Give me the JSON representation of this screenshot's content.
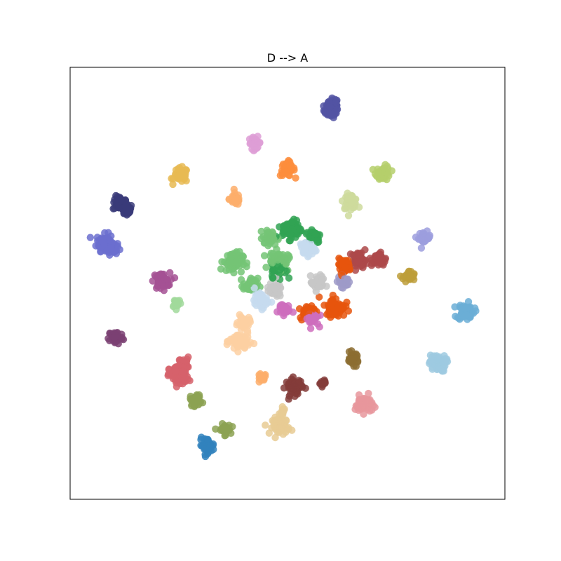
{
  "chart_data": {
    "type": "scatter",
    "title": "D --> A",
    "xlabel": "",
    "ylabel": "",
    "xlim": [
      -100,
      100
    ],
    "ylim": [
      -100,
      100
    ],
    "grid": false,
    "legend": "none",
    "ticks": false,
    "series": [
      {
        "color": "#5254a3",
        "points": [
          [
            21,
            83,
            2.5
          ],
          [
            20,
            80,
            3
          ]
        ]
      },
      {
        "color": "#393b79",
        "points": [
          [
            -77,
            37,
            3
          ],
          [
            -74,
            34,
            2.5
          ]
        ]
      },
      {
        "color": "#6b6ecf",
        "points": [
          [
            -84,
            19,
            3.5
          ],
          [
            -81,
            16,
            2.5
          ]
        ]
      },
      {
        "color": "#9c9ede",
        "points": [
          [
            63,
            21,
            2.5
          ]
        ]
      },
      {
        "color": "#de9ed6",
        "points": [
          [
            -15,
            65,
            2.5
          ]
        ]
      },
      {
        "color": "#fd8d3c",
        "points": [
          [
            0,
            53,
            3
          ]
        ]
      },
      {
        "color": "#fdae6b",
        "points": [
          [
            -24,
            39,
            2.5
          ],
          [
            -12,
            -44,
            2
          ]
        ]
      },
      {
        "color": "#e7ba52",
        "points": [
          [
            -49,
            50,
            3
          ]
        ]
      },
      {
        "color": "#b5cf6b",
        "points": [
          [
            44,
            51,
            3
          ]
        ]
      },
      {
        "color": "#cedb9c",
        "points": [
          [
            29,
            38,
            3
          ]
        ]
      },
      {
        "color": "#a55194",
        "points": [
          [
            -58,
            1,
            3.5
          ]
        ]
      },
      {
        "color": "#7b4173",
        "points": [
          [
            -79,
            -25,
            3
          ]
        ]
      },
      {
        "color": "#a1d99b",
        "points": [
          [
            -51,
            -9,
            2
          ]
        ]
      },
      {
        "color": "#bd9e39",
        "points": [
          [
            56,
            3,
            2.5
          ]
        ]
      },
      {
        "color": "#6baed6",
        "points": [
          [
            82,
            -13,
            3.5
          ]
        ]
      },
      {
        "color": "#9ecae1",
        "points": [
          [
            69,
            -37,
            3.5
          ]
        ]
      },
      {
        "color": "#d6616b",
        "points": [
          [
            -50,
            -43,
            4
          ],
          [
            -48,
            -37,
            2.5
          ]
        ]
      },
      {
        "color": "#8ca252",
        "points": [
          [
            -42,
            -54,
            2.5
          ],
          [
            -29,
            -68,
            2.5
          ]
        ]
      },
      {
        "color": "#3182bd",
        "points": [
          [
            -37,
            -75,
            3
          ]
        ]
      },
      {
        "color": "#e7cb94",
        "points": [
          [
            -3,
            -66,
            3.5
          ],
          [
            -2,
            -59,
            1.5
          ]
        ]
      },
      {
        "color": "#843c39",
        "points": [
          [
            3,
            -48,
            3.5
          ],
          [
            16,
            -46,
            1.5
          ]
        ]
      },
      {
        "color": "#e7969c",
        "points": [
          [
            35,
            -56,
            3.5
          ]
        ]
      },
      {
        "color": "#8c6d31",
        "points": [
          [
            30,
            -35,
            2.5
          ]
        ]
      },
      {
        "color": "#fdd0a2",
        "points": [
          [
            -22,
            -27,
            4
          ],
          [
            -20,
            -18,
            2.5
          ]
        ]
      },
      {
        "color": "#74c476",
        "points": [
          [
            -4,
            10,
            4
          ],
          [
            -25,
            10,
            4
          ],
          [
            -17,
            -1,
            3
          ],
          [
            -8,
            21,
            3
          ]
        ]
      },
      {
        "color": "#31a354",
        "points": [
          [
            2,
            25,
            4
          ],
          [
            12,
            22,
            3
          ],
          [
            -4,
            6,
            3
          ]
        ]
      },
      {
        "color": "#e6550d",
        "points": [
          [
            22,
            -11,
            4
          ],
          [
            26,
            8,
            3
          ],
          [
            9,
            -13,
            3
          ]
        ]
      },
      {
        "color": "#ad494a",
        "points": [
          [
            33,
            11,
            3
          ],
          [
            42,
            11,
            3
          ]
        ]
      },
      {
        "color": "#c6dbef",
        "points": [
          [
            9,
            16,
            3
          ],
          [
            -12,
            -8,
            3
          ]
        ]
      },
      {
        "color": "#ce6dbd",
        "points": [
          [
            11,
            -16,
            3
          ],
          [
            -2,
            -12,
            2.5
          ]
        ]
      },
      {
        "color": "#9e9ac8",
        "points": [
          [
            26,
            1,
            2.5
          ]
        ]
      },
      {
        "color": "#c7c7c7",
        "points": [
          [
            -6,
            -3,
            3
          ],
          [
            14,
            0,
            3
          ]
        ]
      }
    ]
  }
}
